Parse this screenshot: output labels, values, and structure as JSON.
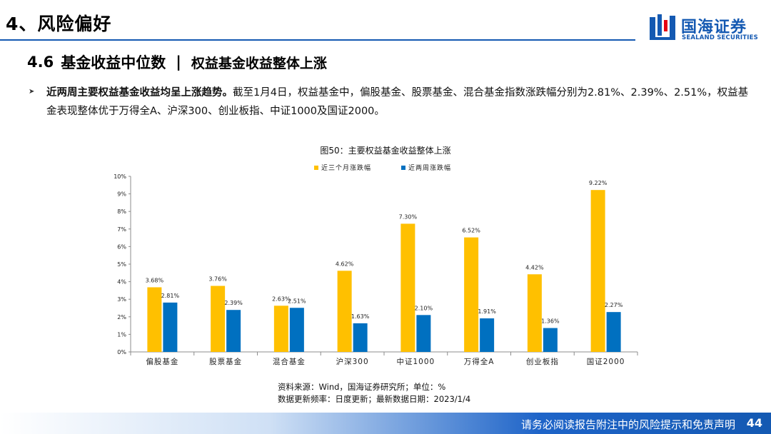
{
  "header": {
    "section_title": "4、风险偏好",
    "brand_cn": "国海证券",
    "brand_en": "SEALAND SECURITIES",
    "accent_color": "#1459b2"
  },
  "subtitle": {
    "number": "4.6",
    "topic": "基金收益中位数",
    "separator": "|",
    "theme": "权益基金收益整体上涨"
  },
  "bullet": {
    "lead": "近两周主要权益基金收益均呈上涨趋势。",
    "text": "截至1月4日，权益基金中，偏股基金、股票基金、混合基金指数涨跌幅分别为2.81%、2.39%、2.51%，权益基金表现整体优于万得全A、沪深300、创业板指、中证1000及国证2000。"
  },
  "figure": {
    "title": "图50：主要权益基金收益整体上涨",
    "source": "资料来源：Wind，国海证券研究所；单位：%",
    "update": "数据更新频率：日度更新；最新数据日期：2023/1/4"
  },
  "chart_data": {
    "type": "bar",
    "categories": [
      "偏股基金",
      "股票基金",
      "混合基金",
      "沪深300",
      "中证1000",
      "万得全A",
      "创业板指",
      "国证2000"
    ],
    "series": [
      {
        "name": "近三个月涨跌幅",
        "color": "#ffc000",
        "values": [
          3.68,
          3.76,
          2.63,
          4.62,
          7.3,
          6.52,
          4.42,
          9.22
        ],
        "labels": [
          "3.68%",
          "3.76%",
          "2.63%",
          "4.62%",
          "7.30%",
          "6.52%",
          "4.42%",
          "9.22%"
        ]
      },
      {
        "name": "近两周涨跌幅",
        "color": "#0070c0",
        "values": [
          2.81,
          2.39,
          2.51,
          1.63,
          2.1,
          1.91,
          1.36,
          2.27
        ],
        "labels": [
          "2.81%",
          "2.39%",
          "2.51%",
          "1.63%",
          "2.10%",
          "1.91%",
          "1.36%",
          "2.27%"
        ]
      }
    ],
    "yticks": [
      "0%",
      "1%",
      "2%",
      "3%",
      "4%",
      "5%",
      "6%",
      "7%",
      "8%",
      "9%",
      "10%"
    ],
    "ylim": [
      0,
      10
    ],
    "legend_position": "top-center",
    "grid": false
  },
  "footer": {
    "disclaimer": "请务必阅读报告附注中的风险提示和免责声明",
    "page": "44"
  }
}
